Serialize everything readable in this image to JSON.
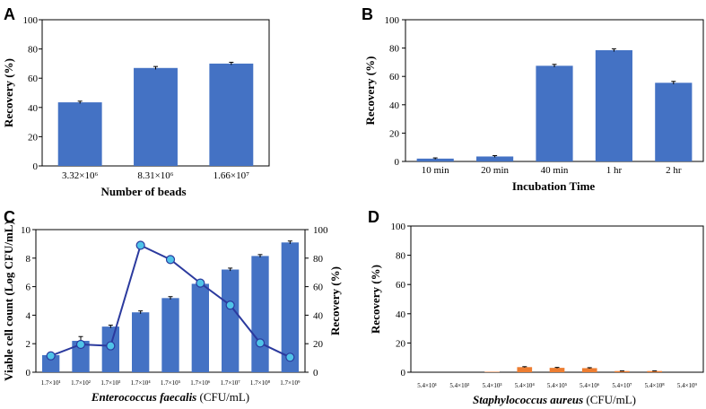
{
  "colors": {
    "bar_blue": "#4472c4",
    "bar_orange": "#ed7d31",
    "line": "#2b3a9e",
    "marker": "#4fc3e8",
    "axis": "#000000"
  },
  "chart_data": [
    {
      "panel": "A",
      "type": "bar",
      "categories": [
        "3.32×10⁶",
        "8.31×10⁶",
        "1.66×10⁷"
      ],
      "values": [
        43.5,
        67.0,
        70.0
      ],
      "errors": [
        0.8,
        1.0,
        0.9
      ],
      "xlabel": "Number of beads",
      "ylabel": "Recovery (%)",
      "ylim": [
        0,
        100
      ],
      "yticks": [
        0,
        20,
        40,
        60,
        80,
        100
      ]
    },
    {
      "panel": "B",
      "type": "bar",
      "categories": [
        "10 min",
        "20 min",
        "40 min",
        "1 hr",
        "2 hr"
      ],
      "values": [
        2.0,
        3.5,
        67.5,
        78.5,
        55.5
      ],
      "errors": [
        0.5,
        0.6,
        1.0,
        1.0,
        1.0
      ],
      "xlabel": "Incubation Time",
      "ylabel": "Recovery (%)",
      "ylim": [
        0,
        100
      ],
      "yticks": [
        0,
        20,
        40,
        60,
        80,
        100
      ]
    },
    {
      "panel": "C",
      "type": "bar",
      "categories": [
        "1.7×10¹",
        "1.7×10²",
        "1.7×10³",
        "1.7×10⁴",
        "1.7×10⁵",
        "1.7×10⁶",
        "1.7×10⁷",
        "1.7×10⁸",
        "1.7×10⁹"
      ],
      "series": [
        {
          "type": "bar",
          "axis": "left",
          "values": [
            1.2,
            2.2,
            3.2,
            4.2,
            5.2,
            6.2,
            7.2,
            8.15,
            9.1
          ],
          "errors": [
            0.1,
            0.3,
            0.1,
            0.1,
            0.1,
            0.1,
            0.1,
            0.1,
            0.1
          ]
        },
        {
          "type": "line",
          "axis": "right",
          "values": [
            11.5,
            19.5,
            18.5,
            89.0,
            79.0,
            62.5,
            47.0,
            20.5,
            10.5
          ],
          "errors": [
            1.5,
            3,
            2,
            3,
            1.5,
            2,
            1.5,
            1,
            1
          ]
        }
      ],
      "xlabel_italic": "Enterococcus faecalis",
      "xlabel_rest": " (CFU/mL)",
      "ylabel": "Viable cell count (Log CFU/mL)",
      "ylabel_right": "Recovery (%)",
      "ylim": [
        0,
        10
      ],
      "yticks": [
        0,
        2,
        4,
        6,
        8,
        10
      ],
      "ylim_right": [
        0,
        100
      ],
      "yticks_right": [
        0,
        20,
        40,
        60,
        80,
        100
      ]
    },
    {
      "panel": "D",
      "type": "bar",
      "categories": [
        "5.4×10¹",
        "5.4×10²",
        "5.4×10³",
        "5.4×10⁴",
        "5.4×10⁵",
        "5.4×10⁶",
        "5.4×10⁷",
        "5.4×10⁸",
        "5.4×10⁹"
      ],
      "values": [
        0,
        0,
        0.3,
        3.5,
        3.0,
        2.8,
        0.8,
        0.8,
        0
      ],
      "errors": [
        0,
        0,
        0,
        0.3,
        0.3,
        0.3,
        0.1,
        0.1,
        0
      ],
      "xlabel_italic": "Staphylococcus aureus",
      "xlabel_rest": " (CFU/mL)",
      "ylabel": "Recovery (%)",
      "ylim": [
        0,
        100
      ],
      "yticks": [
        0,
        20,
        40,
        60,
        80,
        100
      ]
    }
  ]
}
